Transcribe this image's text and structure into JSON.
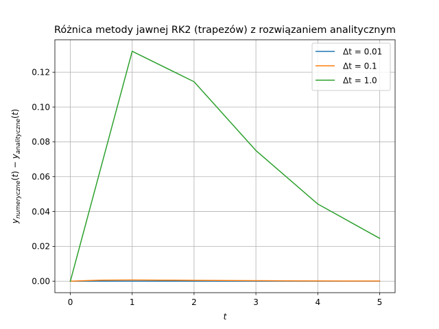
{
  "chart_data": {
    "type": "line",
    "title": "Różnica metody jawnej RK2 (trapezów) z rozwiązaniem analitycznym",
    "xlabel": "t",
    "ylabel": "y_{numeryczne}(t) − y_{analityczne}(t)",
    "xlim": [
      -0.25,
      5.25
    ],
    "ylim": [
      -0.0066,
      0.1386
    ],
    "x_ticks": [
      0,
      1,
      2,
      3,
      4,
      5
    ],
    "x_tick_labels": [
      "0",
      "1",
      "2",
      "3",
      "4",
      "5"
    ],
    "y_ticks": [
      0.0,
      0.02,
      0.04,
      0.06,
      0.08,
      0.1,
      0.12
    ],
    "y_tick_labels": [
      "0.00",
      "0.02",
      "0.04",
      "0.06",
      "0.08",
      "0.10",
      "0.12"
    ],
    "grid": true,
    "legend_position": "top-right",
    "series": [
      {
        "name": "Δt = 0.01",
        "color": "#1f77b4",
        "x": [
          0,
          0.5,
          1,
          1.5,
          2,
          2.5,
          3,
          3.5,
          4,
          4.5,
          5
        ],
        "y": [
          0,
          1.5e-06,
          1.5e-06,
          1.2e-06,
          9e-07,
          7e-07,
          5e-07,
          4e-07,
          3e-07,
          2e-07,
          1e-07
        ]
      },
      {
        "name": "Δt = 0.1",
        "color": "#ff7f0e",
        "x": [
          0,
          0.5,
          1,
          1.5,
          2,
          2.5,
          3,
          3.5,
          4,
          4.5,
          5
        ],
        "y": [
          0,
          0.0006,
          0.0007,
          0.0006,
          0.0005,
          0.0004,
          0.0003,
          0.0002,
          0.00015,
          0.0001,
          7e-05
        ]
      },
      {
        "name": "Δt = 1.0",
        "color": "#2ca02c",
        "x": [
          0,
          1,
          2,
          3,
          4,
          5
        ],
        "y": [
          0,
          0.132,
          0.1145,
          0.075,
          0.0443,
          0.0246
        ]
      }
    ]
  }
}
